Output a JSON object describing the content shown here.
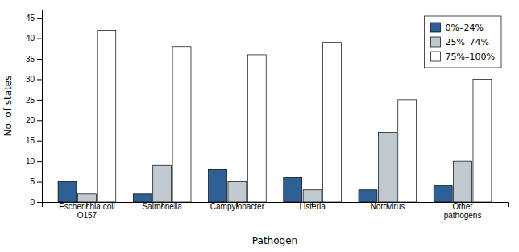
{
  "chart_data": {
    "type": "bar",
    "categories": [
      "Escherichia coli\nO157",
      "Salmonella",
      "Campylobacter",
      "Listeria",
      "Norovirus",
      "Other\npathogens"
    ],
    "series": [
      {
        "name": "0%–24%",
        "color": "#2e6096",
        "values": [
          5,
          2,
          8,
          6,
          3,
          4
        ]
      },
      {
        "name": "25%–74%",
        "color": "#c0c8d0",
        "values": [
          2,
          9,
          5,
          3,
          17,
          10
        ]
      },
      {
        "name": "75%–100%",
        "color": "#ffffff",
        "values": [
          42,
          38,
          36,
          39,
          25,
          30
        ]
      }
    ],
    "xlabel": "Pathogen",
    "ylabel": "No. of states",
    "ylim": [
      0,
      47
    ],
    "yticks": [
      0,
      5,
      10,
      15,
      20,
      25,
      30,
      35,
      40,
      45
    ],
    "grid": false,
    "legend": "upper right"
  }
}
